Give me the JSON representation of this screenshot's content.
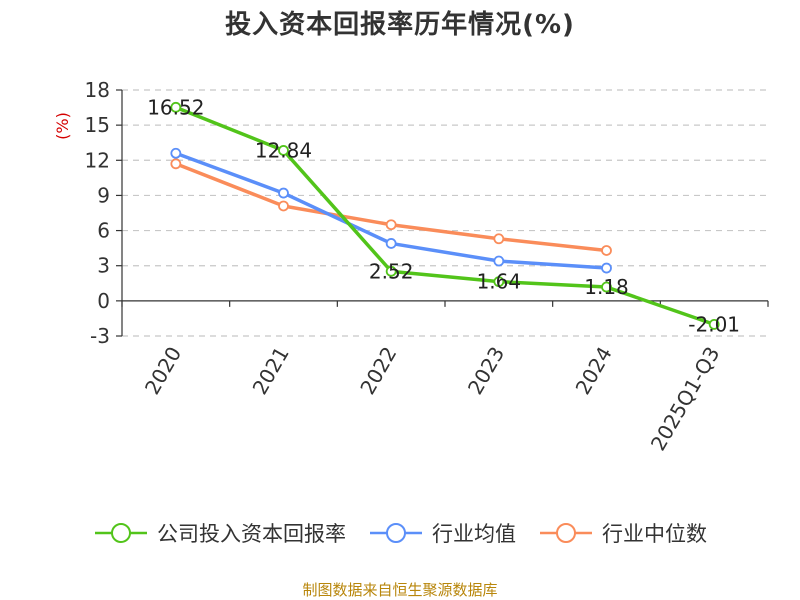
{
  "chart_data": {
    "type": "line",
    "title": "投入资本回报率历年情况(%)",
    "ylabel": "(%)",
    "xlabel": "",
    "categories": [
      "2020",
      "2021",
      "2022",
      "2023",
      "2024",
      "2025Q1-Q3"
    ],
    "ylim": [
      -3,
      18
    ],
    "yticks": [
      18,
      15,
      12,
      9,
      6,
      3,
      0,
      -3
    ],
    "grid": true,
    "legend_position": "bottom",
    "series": [
      {
        "name": "公司投入资本回报率",
        "color": "#52c41a",
        "values": [
          16.52,
          12.84,
          2.52,
          1.64,
          1.18,
          -2.01
        ],
        "labels": [
          "16.52",
          "12.84",
          "2.52",
          "1.64",
          "1.18",
          "-2.01"
        ]
      },
      {
        "name": "行业均值",
        "color": "#5b8ff9",
        "values": [
          12.6,
          9.2,
          4.9,
          3.4,
          2.8,
          null
        ]
      },
      {
        "name": "行业中位数",
        "color": "#fa8c5a",
        "values": [
          11.7,
          8.1,
          6.5,
          5.3,
          4.3,
          null
        ]
      }
    ]
  },
  "source": "制图数据来自恒生聚源数据库"
}
